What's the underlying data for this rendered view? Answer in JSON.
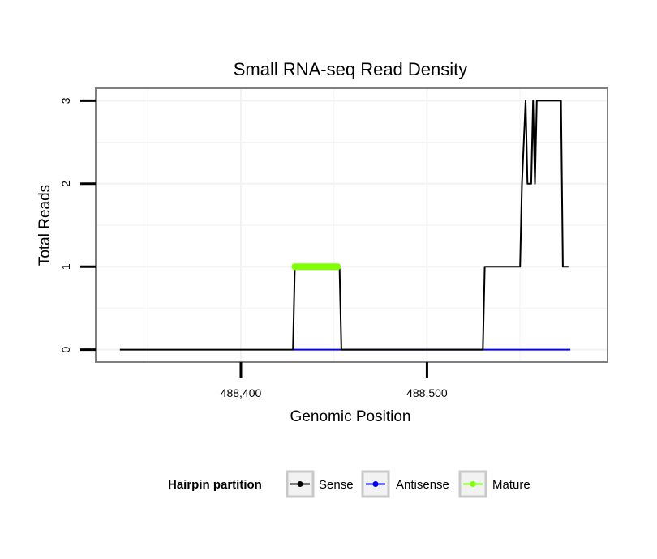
{
  "chart_data": {
    "type": "line",
    "title": "Small RNA-seq Read Density",
    "xlabel": "Genomic Position",
    "ylabel": "Total Reads",
    "xlim": [
      488322,
      488597
    ],
    "ylim": [
      -0.15,
      3.15
    ],
    "x_ticks": [
      488400,
      488500
    ],
    "x_tick_labels": [
      "488,400",
      "488,500"
    ],
    "y_ticks": [
      0,
      1,
      2,
      3
    ],
    "y_tick_labels": [
      "0",
      "1",
      "2",
      "3"
    ],
    "grid": true,
    "legend_position": "bottom",
    "legend_title": "Hairpin partition",
    "series": [
      {
        "name": "Sense",
        "color": "#000000",
        "x": [
          488335,
          488428,
          488429,
          488453,
          488454,
          488530,
          488531,
          488550,
          488551,
          488553,
          488554,
          488556,
          488557,
          488558,
          488559,
          488572,
          488573,
          488576
        ],
        "y": [
          0,
          0,
          1,
          1,
          0,
          0,
          1,
          1,
          2,
          3,
          2,
          2,
          3,
          2,
          3,
          3,
          1,
          1
        ]
      },
      {
        "name": "Antisense",
        "color": "#0000ff",
        "x": [
          488428,
          488454,
          488530,
          488577
        ],
        "y": [
          0,
          0,
          0,
          0
        ]
      },
      {
        "name": "Mature",
        "color": "#80ff00",
        "x": [
          488429,
          488452
        ],
        "y": [
          1,
          1
        ]
      }
    ]
  }
}
